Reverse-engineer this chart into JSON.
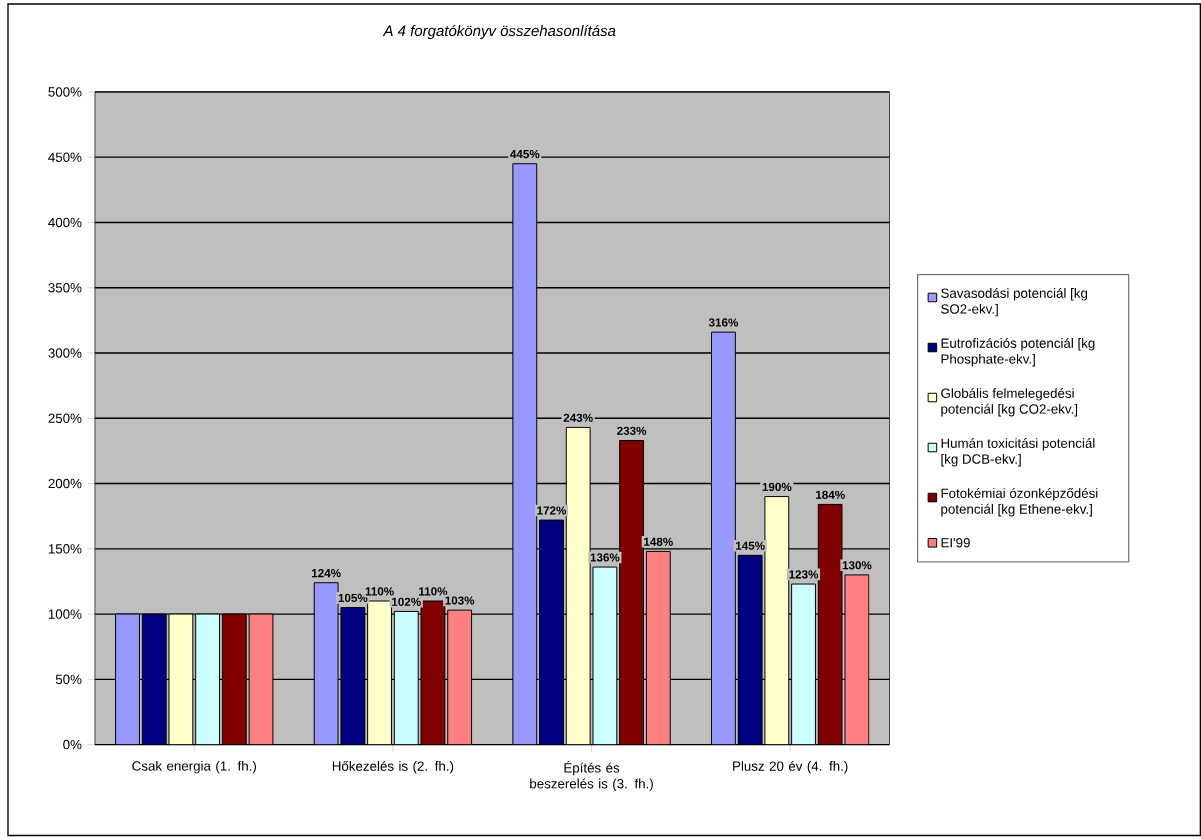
{
  "chart_data": {
    "type": "bar",
    "title": "A  4 forgatókönyv összehasonlítása",
    "categories": [
      "Csak energia (1. fh.)",
      "Hőkezelés is (2. fh.)",
      "Építés és beszerelés is (3. fh.)",
      "Plusz 20 év (4. fh.)"
    ],
    "series": [
      {
        "name": "Savasodási potenciál [kg SO2-ekv.]",
        "color": "#9999ff",
        "values": [
          100,
          124,
          445,
          316
        ],
        "value_labels": [
          null,
          "124%",
          "445%",
          "316%"
        ]
      },
      {
        "name": "Eutrofizációs potenciál [kg Phosphate-ekv.]",
        "color": "#000080",
        "values": [
          100,
          105,
          172,
          145
        ],
        "value_labels": [
          null,
          "105%",
          "172%",
          "145%"
        ]
      },
      {
        "name": "Globális felmelegedési potenciál [kg CO2-ekv.]",
        "color": "#ffffcc",
        "values": [
          100,
          110,
          243,
          190
        ],
        "value_labels": [
          null,
          "110%",
          "243%",
          "190%"
        ]
      },
      {
        "name": "Humán toxicitási potenciál [kg DCB-ekv.]",
        "color": "#ccffff",
        "values": [
          100,
          102,
          136,
          123
        ],
        "value_labels": [
          null,
          "102%",
          "136%",
          "123%"
        ]
      },
      {
        "name": "Fotokémiai ózonképződési potenciál [kg Ethene-ekv.]",
        "color": "#800000",
        "values": [
          100,
          110,
          233,
          184
        ],
        "value_labels": [
          null,
          "110%",
          "233%",
          "184%"
        ]
      },
      {
        "name": "EI'99",
        "color": "#ff8080",
        "values": [
          100,
          103,
          148,
          130
        ],
        "value_labels": [
          null,
          "103%",
          "148%",
          "130%"
        ]
      }
    ],
    "ylim": [
      0,
      500
    ],
    "yticks": [
      {
        "value": 0,
        "label": "0%"
      },
      {
        "value": 50,
        "label": "50%"
      },
      {
        "value": 100,
        "label": "100%"
      },
      {
        "value": 150,
        "label": "150%"
      },
      {
        "value": 200,
        "label": "200%"
      },
      {
        "value": 250,
        "label": "250%"
      },
      {
        "value": 300,
        "label": "300%"
      },
      {
        "value": 350,
        "label": "350%"
      },
      {
        "value": 400,
        "label": "400%"
      },
      {
        "value": 450,
        "label": "450%"
      },
      {
        "value": 500,
        "label": "500%"
      }
    ],
    "grid": "y",
    "legend": "right"
  }
}
